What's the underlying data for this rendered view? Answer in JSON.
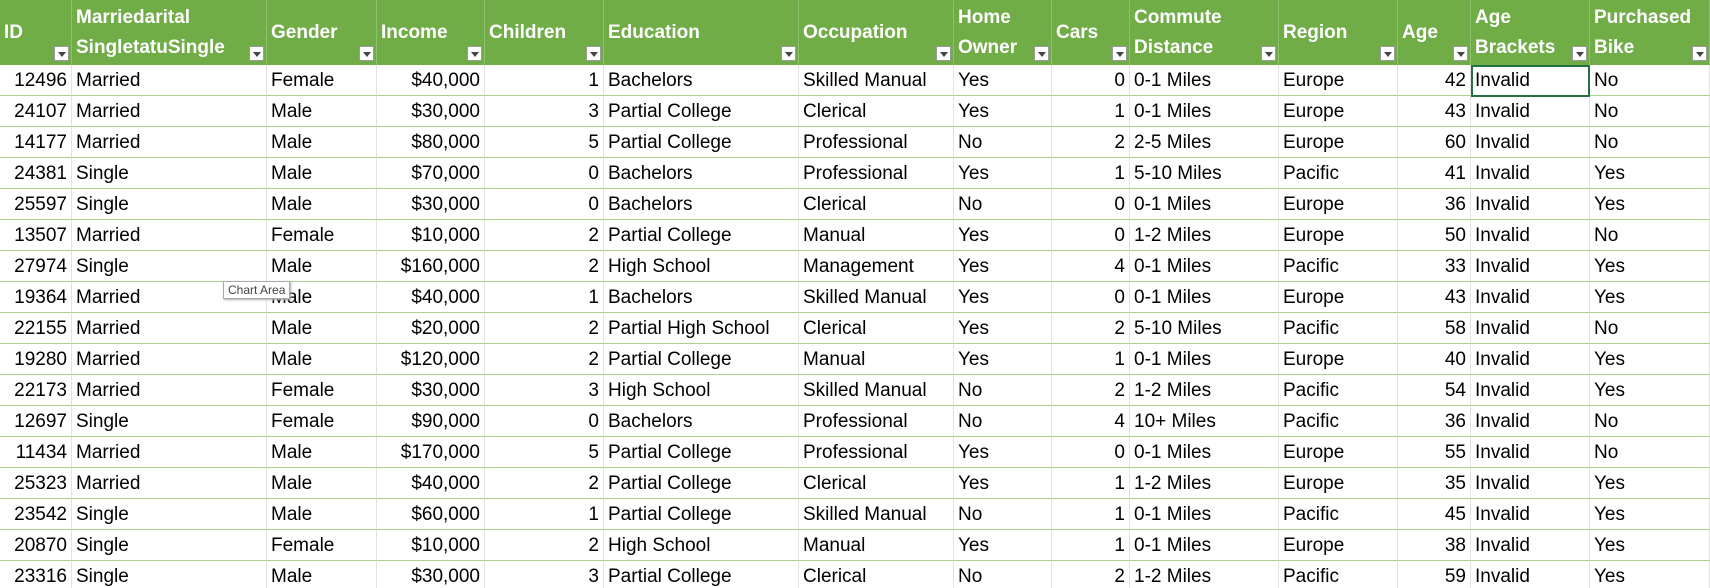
{
  "table": {
    "columns": [
      "ID",
      "Marriedarital\nSingletatuSingle",
      "Gender",
      "Income",
      "Children",
      "Education",
      "Occupation",
      "Home\nOwner",
      "Cars",
      "Commute\nDistance",
      "Region",
      "Age",
      "Age\nBrackets",
      "Purchased\nBike"
    ],
    "rows": [
      [
        "12496",
        "Married",
        "Female",
        "$40,000",
        "1",
        "Bachelors",
        "Skilled Manual",
        "Yes",
        "0",
        "0-1 Miles",
        "Europe",
        "42",
        "Invalid",
        "No"
      ],
      [
        "24107",
        "Married",
        "Male",
        "$30,000",
        "3",
        "Partial College",
        "Clerical",
        "Yes",
        "1",
        "0-1 Miles",
        "Europe",
        "43",
        "Invalid",
        "No"
      ],
      [
        "14177",
        "Married",
        "Male",
        "$80,000",
        "5",
        "Partial College",
        "Professional",
        "No",
        "2",
        "2-5 Miles",
        "Europe",
        "60",
        "Invalid",
        "No"
      ],
      [
        "24381",
        "Single",
        "Male",
        "$70,000",
        "0",
        "Bachelors",
        "Professional",
        "Yes",
        "1",
        "5-10 Miles",
        "Pacific",
        "41",
        "Invalid",
        "Yes"
      ],
      [
        "25597",
        "Single",
        "Male",
        "$30,000",
        "0",
        "Bachelors",
        "Clerical",
        "No",
        "0",
        "0-1 Miles",
        "Europe",
        "36",
        "Invalid",
        "Yes"
      ],
      [
        "13507",
        "Married",
        "Female",
        "$10,000",
        "2",
        "Partial College",
        "Manual",
        "Yes",
        "0",
        "1-2 Miles",
        "Europe",
        "50",
        "Invalid",
        "No"
      ],
      [
        "27974",
        "Single",
        "Male",
        "$160,000",
        "2",
        "High School",
        "Management",
        "Yes",
        "4",
        "0-1 Miles",
        "Pacific",
        "33",
        "Invalid",
        "Yes"
      ],
      [
        "19364",
        "Married",
        "Male",
        "$40,000",
        "1",
        "Bachelors",
        "Skilled Manual",
        "Yes",
        "0",
        "0-1 Miles",
        "Europe",
        "43",
        "Invalid",
        "Yes"
      ],
      [
        "22155",
        "Married",
        "Male",
        "$20,000",
        "2",
        "Partial High School",
        "Clerical",
        "Yes",
        "2",
        "5-10 Miles",
        "Pacific",
        "58",
        "Invalid",
        "No"
      ],
      [
        "19280",
        "Married",
        "Male",
        "$120,000",
        "2",
        "Partial College",
        "Manual",
        "Yes",
        "1",
        "0-1 Miles",
        "Europe",
        "40",
        "Invalid",
        "Yes"
      ],
      [
        "22173",
        "Married",
        "Female",
        "$30,000",
        "3",
        "High School",
        "Skilled Manual",
        "No",
        "2",
        "1-2 Miles",
        "Pacific",
        "54",
        "Invalid",
        "Yes"
      ],
      [
        "12697",
        "Single",
        "Female",
        "$90,000",
        "0",
        "Bachelors",
        "Professional",
        "No",
        "4",
        "10+ Miles",
        "Pacific",
        "36",
        "Invalid",
        "No"
      ],
      [
        "11434",
        "Married",
        "Male",
        "$170,000",
        "5",
        "Partial College",
        "Professional",
        "Yes",
        "0",
        "0-1 Miles",
        "Europe",
        "55",
        "Invalid",
        "No"
      ],
      [
        "25323",
        "Married",
        "Male",
        "$40,000",
        "2",
        "Partial College",
        "Clerical",
        "Yes",
        "1",
        "1-2 Miles",
        "Europe",
        "35",
        "Invalid",
        "Yes"
      ],
      [
        "23542",
        "Single",
        "Male",
        "$60,000",
        "1",
        "Partial College",
        "Skilled Manual",
        "No",
        "1",
        "0-1 Miles",
        "Pacific",
        "45",
        "Invalid",
        "Yes"
      ],
      [
        "20870",
        "Single",
        "Female",
        "$10,000",
        "2",
        "High School",
        "Manual",
        "Yes",
        "1",
        "0-1 Miles",
        "Europe",
        "38",
        "Invalid",
        "Yes"
      ],
      [
        "23316",
        "Single",
        "Male",
        "$30,000",
        "3",
        "Partial College",
        "Clerical",
        "No",
        "2",
        "1-2 Miles",
        "Pacific",
        "59",
        "Invalid",
        "Yes"
      ]
    ]
  },
  "tooltip": "Chart Area"
}
